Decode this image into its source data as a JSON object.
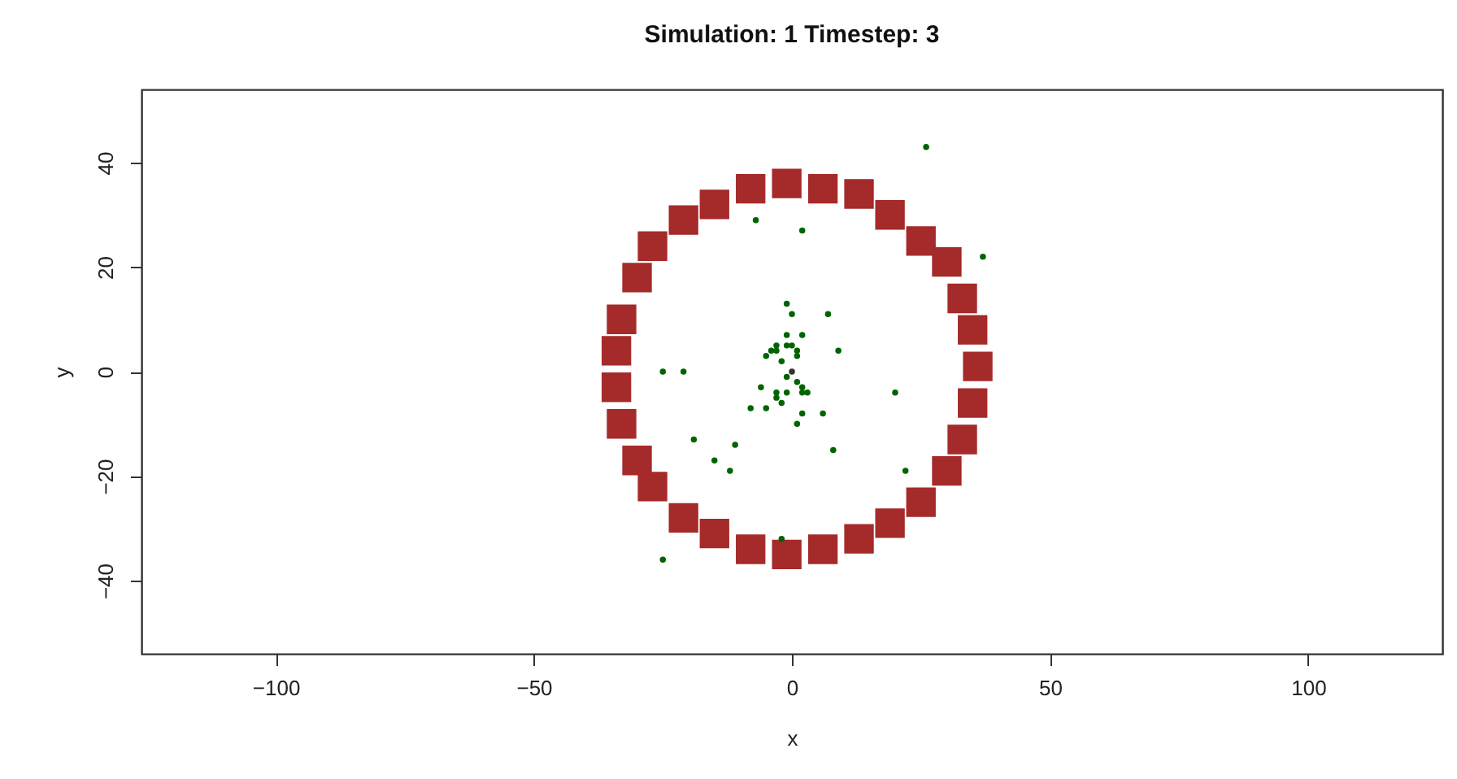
{
  "chart_data": {
    "type": "scatter",
    "title": "Simulation:  1  Timestep:  3",
    "xlabel": "x",
    "ylabel": "y",
    "xlim": [
      -126,
      126
    ],
    "ylim": [
      -54,
      54
    ],
    "xticks": [
      -100,
      -50,
      0,
      50,
      100
    ],
    "yticks": [
      -40,
      -20,
      0,
      20,
      40
    ],
    "grid": false,
    "series": [
      {
        "color": "#a52a2a",
        "marker": "square",
        "x": [
          -8,
          -1,
          6,
          13,
          19,
          25,
          30,
          33,
          35,
          36,
          35,
          33,
          30,
          25,
          19,
          13,
          6,
          -1,
          -8,
          -15,
          -21,
          -27,
          -30,
          -33,
          -34,
          -34,
          -33,
          -30,
          -27,
          -21,
          -15
        ],
        "values": [
          35,
          36,
          35,
          34,
          30,
          25,
          21,
          14,
          8,
          1,
          -6,
          -13,
          -19,
          -25,
          -29,
          -32,
          -34,
          -35,
          -34,
          -31,
          -28,
          -22,
          -17,
          -10,
          -3,
          4,
          10,
          18,
          24,
          29,
          32
        ]
      },
      {
        "color": "#006400",
        "marker": "circle",
        "x": [
          26,
          -7,
          2,
          37,
          -1,
          0,
          7,
          -1,
          2,
          -1,
          9,
          -5,
          -4,
          -3,
          -3,
          0,
          1,
          1,
          -2,
          -1,
          -25,
          -21,
          1,
          2,
          2,
          3,
          -6,
          -3,
          -3,
          -1,
          -2,
          -8,
          -5,
          2,
          6,
          20,
          1,
          -19,
          -11,
          8,
          -15,
          -12,
          22,
          -2,
          -25
        ],
        "values": [
          43,
          29,
          27,
          22,
          13,
          11,
          11,
          7,
          7,
          5,
          4,
          3,
          4,
          4,
          5,
          5,
          4,
          3,
          2,
          -1,
          0,
          0,
          -2,
          -3,
          -4,
          -4,
          -3,
          -4,
          -5,
          -4,
          -6,
          -7,
          -7,
          -8,
          -8,
          -4,
          -10,
          -13,
          -14,
          -15,
          -17,
          -19,
          -19,
          -32,
          -36
        ]
      },
      {
        "color": "#333333",
        "marker": "circle",
        "x": [
          0
        ],
        "values": [
          0
        ]
      }
    ]
  }
}
